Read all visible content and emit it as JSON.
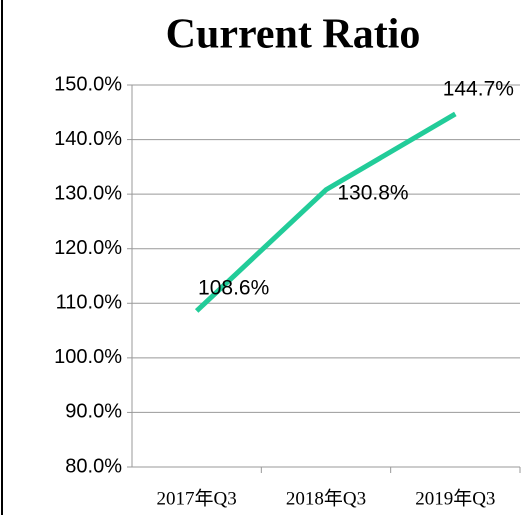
{
  "chart_data": {
    "type": "line",
    "title": "Current Ratio",
    "categories": [
      "2017年Q3",
      "2018年Q3",
      "2019年Q3"
    ],
    "series": [
      {
        "name": "Current Ratio",
        "color": "#22cc99",
        "values": [
          108.6,
          130.8,
          144.7
        ],
        "value_labels": [
          "108.6%",
          "130.8%",
          "144.7%"
        ]
      }
    ],
    "ylim": [
      80,
      150
    ],
    "yticks": [
      {
        "value": 80,
        "label": "80.0%"
      },
      {
        "value": 90,
        "label": "90.0%"
      },
      {
        "value": 100,
        "label": "100.0%"
      },
      {
        "value": 110,
        "label": "110.0%"
      },
      {
        "value": 120,
        "label": "120.0%"
      },
      {
        "value": 130,
        "label": "130.0%"
      },
      {
        "value": 140,
        "label": "140.0%"
      },
      {
        "value": 150,
        "label": "150.0%"
      }
    ],
    "grid": true
  }
}
